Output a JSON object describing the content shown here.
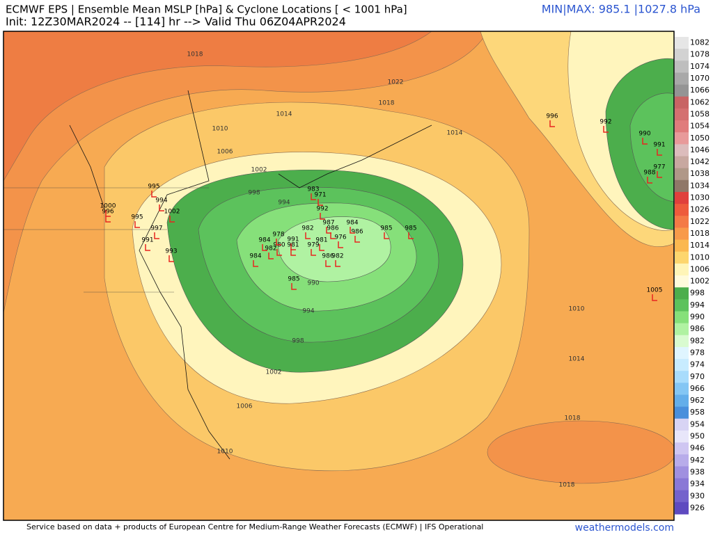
{
  "header": {
    "title": "ECMWF EPS | Ensemble Mean MSLP [hPa] & Cyclone Locations [ < 1001 hPa]",
    "init": "Init: 12Z30MAR2024 -- [114] hr --> Valid Thu 06Z04APR2024",
    "minmax": "MIN|MAX: 985.1 |1027.8 hPa"
  },
  "contours": [
    "1018",
    "1022",
    "1018",
    "1014",
    "1010",
    "1006",
    "1002",
    "998",
    "994",
    "990",
    "994",
    "998",
    "1002",
    "1006",
    "1010",
    "1014",
    "1010",
    "1014",
    "1018",
    "1018"
  ],
  "cyclones": [
    "996",
    "992",
    "990",
    "991",
    "977",
    "988",
    "1005",
    "985",
    "985",
    "984",
    "986",
    "986",
    "976",
    "981",
    "979",
    "986",
    "982",
    "985",
    "1000",
    "996",
    "995",
    "994",
    "1002",
    "995",
    "997",
    "991",
    "993",
    "984",
    "982",
    "980",
    "981",
    "991",
    "984",
    "978",
    "982",
    "987",
    "983",
    "971",
    "992"
  ],
  "colorbar": {
    "labels": [
      1082,
      1078,
      1074,
      1070,
      1066,
      1062,
      1058,
      1054,
      1050,
      1046,
      1042,
      1038,
      1034,
      1030,
      1026,
      1022,
      1018,
      1014,
      1010,
      1006,
      1002,
      998,
      994,
      990,
      986,
      982,
      978,
      974,
      970,
      966,
      962,
      958,
      954,
      950,
      946,
      942,
      938,
      934,
      930,
      926
    ],
    "colors": [
      "#e6e6e6",
      "#d2d2d2",
      "#bebebe",
      "#a8a8a8",
      "#949494",
      "#c86464",
      "#d47070",
      "#e07c7c",
      "#e89a9a",
      "#dcbcbc",
      "#c8a8a0",
      "#b09888",
      "#907868",
      "#e0403c",
      "#ee5b3c",
      "#f47a46",
      "#f89a4a",
      "#fbb850",
      "#fdd66e",
      "#fff5b8",
      "#fffbdc",
      "#4cae4c",
      "#5cc25c",
      "#86e07a",
      "#b0f2a2",
      "#d9fbd0",
      "#dff5ff",
      "#c8ecff",
      "#a8dcfc",
      "#84c6f4",
      "#64aeea",
      "#4a8fdc",
      "#d8d4f4",
      "#e8e6fa",
      "#cfc6f2",
      "#b8acea",
      "#a090e0",
      "#8a78d6",
      "#7462cc",
      "#5e4ac0"
    ]
  },
  "footer": {
    "credit": "Service based on data + products of European Centre for Medium-Range Weather Forecasts (ECMWF) | IFS Operational",
    "site": "weathermodels.com"
  }
}
